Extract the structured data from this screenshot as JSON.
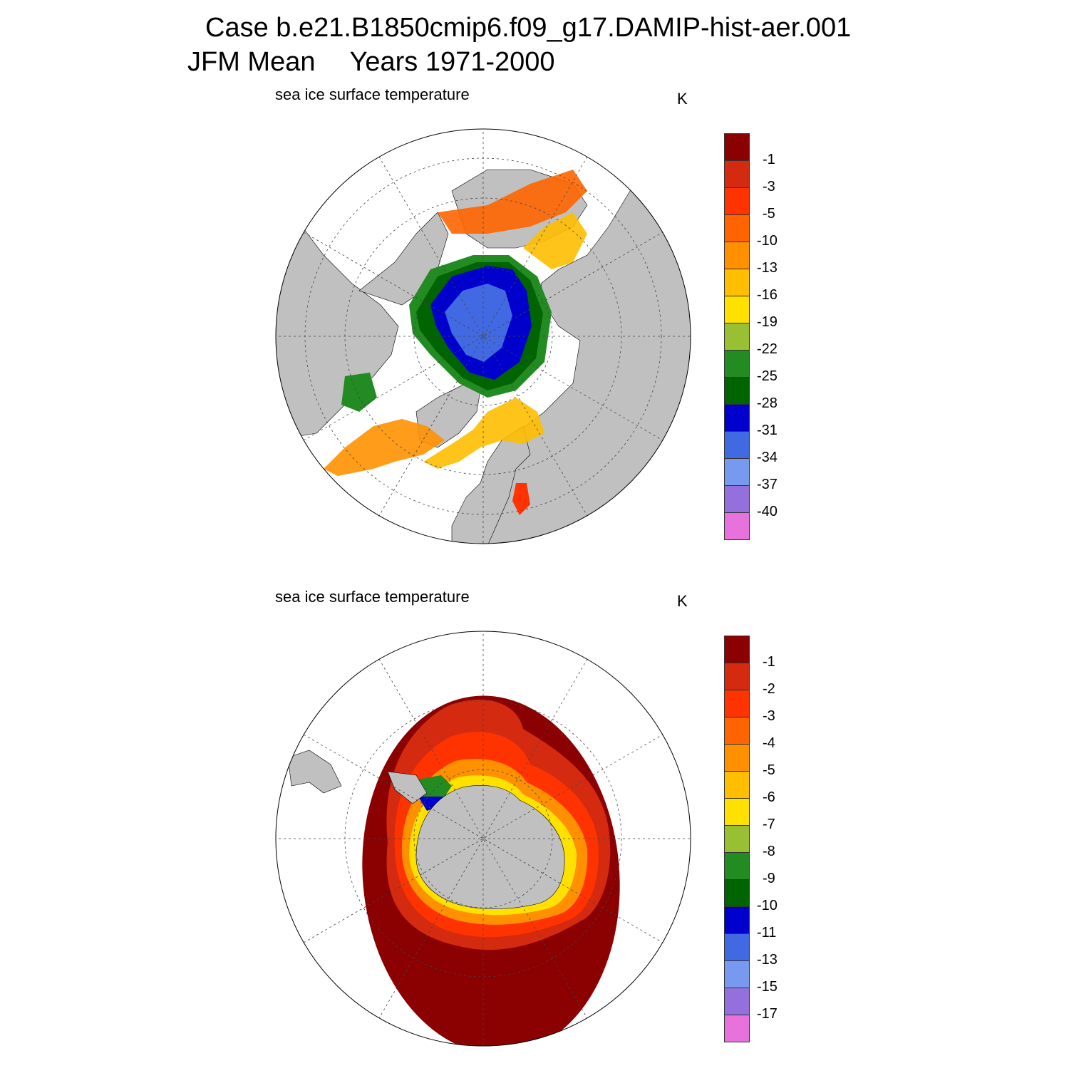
{
  "title": {
    "case": "Case b.e21.B1850cmip6.f09_g17.DAMIP-hist-aer.001",
    "season": "JFM Mean",
    "years": "Years 1971-2000"
  },
  "panels": [
    {
      "id": "north",
      "subtitle": "sea ice surface temperature",
      "units": "K",
      "hemisphere": "north",
      "colorbar": {
        "colors": [
          "#8B0000",
          "#D42A0F",
          "#FF3300",
          "#FF6400",
          "#FF9100",
          "#FFBE00",
          "#FFE100",
          "#99C033",
          "#228B22",
          "#006400",
          "#0000CD",
          "#4169E1",
          "#7799F0",
          "#9370DB",
          "#E872DB"
        ],
        "labels": [
          "-1",
          "-3",
          "-5",
          "-10",
          "-13",
          "-16",
          "-19",
          "-22",
          "-25",
          "-28",
          "-31",
          "-34",
          "-37",
          "-40"
        ]
      }
    },
    {
      "id": "south",
      "subtitle": "sea ice surface temperature",
      "units": "K",
      "hemisphere": "south",
      "colorbar": {
        "colors": [
          "#8B0000",
          "#D42A0F",
          "#FF3300",
          "#FF6400",
          "#FF9100",
          "#FFBE00",
          "#FFE100",
          "#99C033",
          "#228B22",
          "#006400",
          "#0000CD",
          "#4169E1",
          "#7799F0",
          "#9370DB",
          "#E872DB"
        ],
        "labels": [
          "-1",
          "-2",
          "-3",
          "-4",
          "-5",
          "-6",
          "-7",
          "-8",
          "-9",
          "-10",
          "-11",
          "-13",
          "-15",
          "-17"
        ]
      }
    }
  ]
}
